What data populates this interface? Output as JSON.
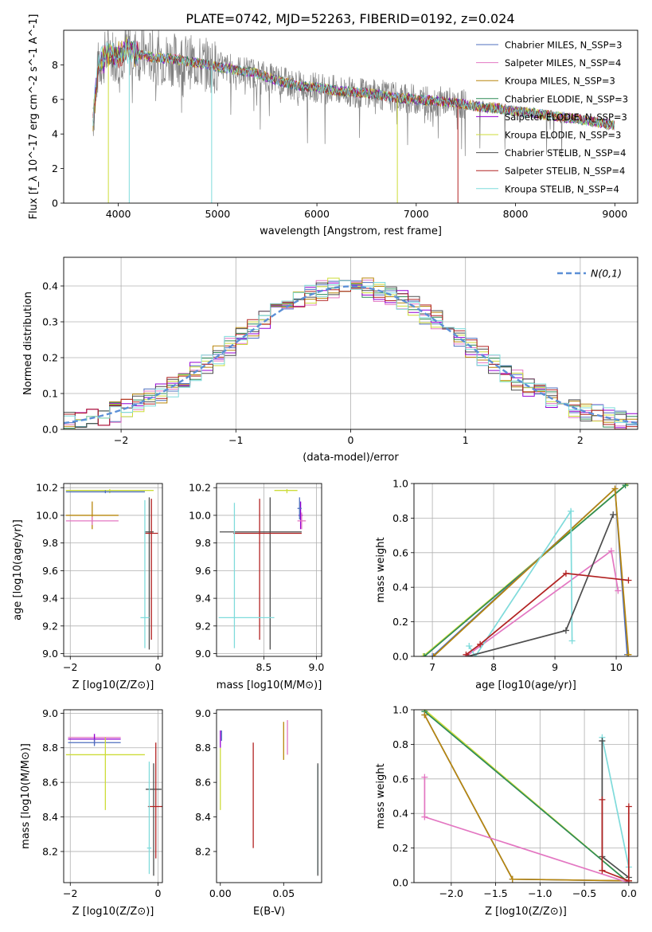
{
  "title": "PLATE=0742, MJD=52263, FIBERID=0192, z=0.024",
  "colors": {
    "chabrier_miles": "#4f6fbf",
    "salpeter_miles": "#e377c2",
    "kroupa_miles": "#b8860b",
    "chabrier_elodie": "#2e8b57",
    "salpeter_elodie": "#9400d3",
    "kroupa_elodie": "#cddc39",
    "chabrier_stelib": "#4d4d4d",
    "salpeter_stelib": "#b22222",
    "kroupa_stelib": "#7fdbdb",
    "data": "#808080",
    "gaussian": "#5b8fd6",
    "grid": "#b0b0b0"
  },
  "chart_data": [
    {
      "id": "spectrum",
      "type": "line",
      "xlabel": "wavelength [Angstrom, rest frame]",
      "ylabel": "Flux [f_λ 10^-17 erg cm^-2 s^-1 A^-1]",
      "xlim": [
        3450,
        9230
      ],
      "ylim": [
        0,
        10
      ],
      "xticks": [
        4000,
        5000,
        6000,
        7000,
        8000,
        9000
      ],
      "yticks": [
        0,
        2,
        4,
        6,
        8
      ],
      "legend_position": "top-right",
      "series": [
        {
          "name": "Chabrier MILES, N_SSP=3",
          "key": "chabrier_miles"
        },
        {
          "name": "Salpeter MILES, N_SSP=4",
          "key": "salpeter_miles"
        },
        {
          "name": "Kroupa MILES, N_SSP=3",
          "key": "kroupa_miles"
        },
        {
          "name": "Chabrier ELODIE, N_SSP=3",
          "key": "chabrier_elodie"
        },
        {
          "name": "Salpeter ELODIE, N_SSP=3",
          "key": "salpeter_elodie"
        },
        {
          "name": "Kroupa ELODIE, N_SSP=3",
          "key": "kroupa_elodie"
        },
        {
          "name": "Chabrier STELIB, N_SSP=4",
          "key": "chabrier_stelib"
        },
        {
          "name": "Salpeter STELIB, N_SSP=4",
          "key": "salpeter_stelib"
        },
        {
          "name": "Kroupa STELIB, N_SSP=4",
          "key": "kroupa_stelib"
        }
      ],
      "continuum": {
        "x": [
          3740,
          3800,
          3900,
          4000,
          4100,
          4200,
          4400,
          4600,
          4800,
          5000,
          5200,
          5400,
          5600,
          5800,
          6000,
          6200,
          6400,
          6600,
          6800,
          7000,
          7200,
          7400,
          7600,
          7800,
          8000,
          8200,
          8400,
          8600,
          8800,
          9000
        ],
        "y": [
          4.6,
          8.0,
          8.7,
          8.5,
          8.9,
          8.6,
          8.4,
          8.3,
          8.1,
          7.9,
          7.7,
          7.5,
          7.1,
          6.8,
          6.7,
          6.5,
          6.4,
          6.3,
          6.1,
          6.0,
          5.9,
          5.8,
          5.6,
          5.5,
          5.3,
          5.2,
          5.0,
          4.9,
          4.7,
          4.5
        ]
      }
    },
    {
      "id": "residuals",
      "type": "line",
      "xlabel": "(data-model)/error",
      "ylabel": "Normed distribution",
      "xlim": [
        -2.5,
        2.5
      ],
      "ylim": [
        0,
        0.48
      ],
      "xticks": [
        -2,
        -1,
        0,
        1,
        2
      ],
      "yticks": [
        0.0,
        0.1,
        0.2,
        0.3,
        0.4
      ],
      "grid": true,
      "legend_position": "top-right",
      "gaussian_label": "N(0,1)"
    },
    {
      "id": "age_vs_Z",
      "type": "scatter",
      "xlabel": "Z [log10(Z/Z⊙)]",
      "ylabel": "age [log10(age/yr)]",
      "xlim": [
        -2.15,
        0.1
      ],
      "ylim": [
        8.98,
        10.23
      ],
      "xticks": [
        -2,
        0
      ],
      "yticks": [
        9.0,
        9.2,
        9.4,
        9.6,
        9.8,
        10.0,
        10.2
      ],
      "grid": true,
      "errorbars": [
        {
          "key": "kroupa_elodie",
          "x": -1.1,
          "xerr": [
            1.0,
            1.0
          ],
          "y": 10.18,
          "yerr": [
            0.02,
            0.01
          ]
        },
        {
          "key": "chabrier_miles",
          "x": -1.2,
          "xerr": [
            0.9,
            0.9
          ],
          "y": 10.17,
          "yerr": [
            0.01,
            0.01
          ]
        },
        {
          "key": "kroupa_miles",
          "x": -1.5,
          "xerr": [
            0.6,
            0.6
          ],
          "y": 10.0,
          "yerr": [
            0.1,
            0.1
          ]
        },
        {
          "key": "salpeter_miles",
          "x": -1.5,
          "xerr": [
            0.6,
            0.6
          ],
          "y": 9.96,
          "yerr": [
            0.03,
            0.03
          ]
        },
        {
          "key": "chabrier_stelib",
          "x": -0.2,
          "xerr": [
            0.1,
            0.1
          ],
          "y": 9.88,
          "yerr": [
            0.85,
            0.25
          ]
        },
        {
          "key": "salpeter_stelib",
          "x": -0.15,
          "xerr": [
            0.15,
            0.15
          ],
          "y": 9.87,
          "yerr": [
            0.77,
            0.25
          ]
        },
        {
          "key": "kroupa_stelib",
          "x": -0.3,
          "xerr": [
            0.1,
            0.1
          ],
          "y": 9.26,
          "yerr": [
            0.22,
            0.85
          ]
        }
      ]
    },
    {
      "id": "age_vs_mass",
      "type": "scatter",
      "xlabel": "mass [log10(M/M⊙)]",
      "ylabel": "",
      "xlim": [
        8.05,
        9.05
      ],
      "ylim": [
        8.98,
        10.23
      ],
      "xticks": [
        8.5,
        9.0
      ],
      "xtick_labels": [
        "8.5",
        "9.0"
      ],
      "yticks": [
        9.0,
        9.2,
        9.4,
        9.6,
        9.8,
        10.0,
        10.2
      ],
      "grid": true,
      "errorbars": [
        {
          "key": "kroupa_elodie",
          "x": 8.72,
          "xerr": [
            0.12,
            0.1
          ],
          "y": 10.18,
          "yerr": [
            0.02,
            0.01
          ]
        },
        {
          "key": "salpeter_elodie",
          "x": 8.85,
          "xerr": [
            0.02,
            0.02
          ],
          "y": 10.0,
          "yerr": [
            0.1,
            0.1
          ]
        },
        {
          "key": "salpeter_miles",
          "x": 8.86,
          "xerr": [
            0.04,
            0.04
          ],
          "y": 9.96,
          "yerr": [
            0.06,
            0.06
          ]
        },
        {
          "key": "chabrier_miles",
          "x": 8.84,
          "xerr": [
            0.02,
            0.02
          ],
          "y": 10.05,
          "yerr": [
            0.08,
            0.08
          ]
        },
        {
          "key": "chabrier_stelib",
          "x": 8.56,
          "xerr": [
            0.48,
            0.3
          ],
          "y": 9.88,
          "yerr": [
            0.85,
            0.25
          ]
        },
        {
          "key": "salpeter_stelib",
          "x": 8.46,
          "xerr": [
            0.25,
            0.4
          ],
          "y": 9.87,
          "yerr": [
            0.77,
            0.25
          ]
        },
        {
          "key": "kroupa_stelib",
          "x": 8.22,
          "xerr": [
            0.15,
            0.38
          ],
          "y": 9.26,
          "yerr": [
            0.22,
            0.83
          ]
        }
      ]
    },
    {
      "id": "weight_vs_age",
      "type": "line",
      "xlabel": "age [log10(age/yr)]",
      "ylabel": "mass weight",
      "xlim": [
        6.7,
        10.35
      ],
      "ylim": [
        0,
        1.0
      ],
      "xticks": [
        7,
        8,
        9,
        10
      ],
      "yticks": [
        0.0,
        0.2,
        0.4,
        0.6,
        0.8,
        1.0
      ],
      "grid": true,
      "series": [
        {
          "key": "kroupa_elodie",
          "x": [
            6.85,
            10.18
          ],
          "y": [
            0.0,
            1.0
          ]
        },
        {
          "key": "chabrier_elodie",
          "x": [
            6.87,
            10.15
          ],
          "y": [
            0.0,
            0.99
          ]
        },
        {
          "key": "chabrier_miles",
          "x": [
            7.0,
            9.98,
            10.18
          ],
          "y": [
            0.0,
            0.97,
            0.01
          ]
        },
        {
          "key": "kroupa_miles",
          "x": [
            7.02,
            9.98,
            10.2
          ],
          "y": [
            0.0,
            0.97,
            0.01
          ]
        },
        {
          "key": "salpeter_miles",
          "x": [
            7.55,
            9.92,
            10.03
          ],
          "y": [
            0.0,
            0.61,
            0.38
          ]
        },
        {
          "key": "kroupa_stelib",
          "x": [
            7.6,
            7.7,
            9.26,
            9.28
          ],
          "y": [
            0.06,
            0.0,
            0.84,
            0.09
          ]
        },
        {
          "key": "chabrier_stelib",
          "x": [
            7.58,
            9.18,
            9.95
          ],
          "y": [
            0.0,
            0.15,
            0.82
          ]
        },
        {
          "key": "salpeter_stelib",
          "x": [
            7.55,
            7.78,
            9.18,
            10.2
          ],
          "y": [
            0.01,
            0.07,
            0.48,
            0.44
          ]
        }
      ]
    },
    {
      "id": "mass_vs_Z",
      "type": "scatter",
      "xlabel": "Z [log10(Z/Z⊙)]",
      "ylabel": "mass [log10(M/M⊙)]",
      "xlim": [
        -2.15,
        0.1
      ],
      "ylim": [
        8.02,
        9.02
      ],
      "xticks": [
        -2,
        0
      ],
      "yticks": [
        8.2,
        8.4,
        8.6,
        8.8,
        9.0
      ],
      "grid": true,
      "errorbars": [
        {
          "key": "salpeter_miles",
          "x": -1.45,
          "xerr": [
            0.6,
            0.6
          ],
          "y": 8.86,
          "yerr": [
            0.02,
            0.02
          ]
        },
        {
          "key": "salpeter_elodie",
          "x": -1.45,
          "xerr": [
            0.6,
            0.6
          ],
          "y": 8.85,
          "yerr": [
            0.03,
            0.03
          ]
        },
        {
          "key": "chabrier_miles",
          "x": -1.45,
          "xerr": [
            0.6,
            0.6
          ],
          "y": 8.83,
          "yerr": [
            0.02,
            0.02
          ]
        },
        {
          "key": "kroupa_elodie",
          "x": -1.2,
          "xerr": [
            0.9,
            0.9
          ],
          "y": 8.76,
          "yerr": [
            0.32,
            0.1
          ]
        },
        {
          "key": "chabrier_stelib",
          "x": -0.1,
          "xerr": [
            0.18,
            0.18
          ],
          "y": 8.56,
          "yerr": [
            0.5,
            0.15
          ]
        },
        {
          "key": "salpeter_stelib",
          "x": -0.05,
          "xerr": [
            0.18,
            0.18
          ],
          "y": 8.46,
          "yerr": [
            0.3,
            0.37
          ]
        },
        {
          "key": "kroupa_stelib",
          "x": -0.2,
          "xerr": [
            0.05,
            0.05
          ],
          "y": 8.22,
          "yerr": [
            0.15,
            0.5
          ]
        }
      ]
    },
    {
      "id": "mass_vs_ebv",
      "type": "scatter",
      "xlabel": "E(B-V)",
      "ylabel": "",
      "xlim": [
        -0.003,
        0.08
      ],
      "ylim": [
        8.02,
        9.02
      ],
      "xticks": [
        0.0,
        0.05
      ],
      "xtick_labels": [
        "0.00",
        "0.05"
      ],
      "yticks": [
        8.2,
        8.4,
        8.6,
        8.8,
        9.0
      ],
      "grid": false,
      "errorbars": [
        {
          "key": "chabrier_miles",
          "x": 0.001,
          "y": 8.86,
          "yerr": [
            0.02,
            0.04
          ]
        },
        {
          "key": "salpeter_elodie",
          "x": 0.0,
          "y": 8.85,
          "yerr": [
            0.05,
            0.05
          ]
        },
        {
          "key": "kroupa_elodie",
          "x": 0.0,
          "y": 8.76,
          "yerr": [
            0.32,
            0.04
          ]
        },
        {
          "key": "salpeter_stelib",
          "x": 0.026,
          "y": 8.46,
          "yerr": [
            0.24,
            0.37
          ]
        },
        {
          "key": "kroupa_miles",
          "x": 0.05,
          "y": 8.85,
          "yerr": [
            0.12,
            0.1
          ]
        },
        {
          "key": "salpeter_miles",
          "x": 0.053,
          "y": 8.86,
          "yerr": [
            0.1,
            0.1
          ]
        },
        {
          "key": "kroupa_stelib",
          "x": 0.077,
          "y": 8.22,
          "yerr": [
            0.15,
            0.48
          ]
        },
        {
          "key": "chabrier_stelib",
          "x": 0.077,
          "y": 8.56,
          "yerr": [
            0.5,
            0.15
          ]
        }
      ]
    },
    {
      "id": "weight_vs_Z",
      "type": "line",
      "xlabel": "Z [log10(Z/Z⊙)]",
      "ylabel": "mass weight",
      "xlim": [
        -2.42,
        0.1
      ],
      "ylim": [
        0,
        1.0
      ],
      "xticks": [
        -2.0,
        -1.5,
        -1.0,
        -0.5,
        0.0
      ],
      "xtick_labels": [
        "−2.0",
        "−1.5",
        "−1.0",
        "−0.5",
        "0.0"
      ],
      "yticks": [
        0.0,
        0.2,
        0.4,
        0.6,
        0.8,
        1.0
      ],
      "grid": true,
      "series": [
        {
          "key": "kroupa_elodie",
          "x": [
            -2.3,
            0.0
          ],
          "y": [
            1.0,
            0.0
          ]
        },
        {
          "key": "chabrier_elodie",
          "x": [
            -2.3,
            0.0
          ],
          "y": [
            0.99,
            0.0
          ]
        },
        {
          "key": "chabrier_miles",
          "x": [
            -2.3,
            -1.31,
            0.0
          ],
          "y": [
            0.97,
            0.02,
            0.01
          ]
        },
        {
          "key": "kroupa_miles",
          "x": [
            -2.3,
            -1.31,
            0.0
          ],
          "y": [
            0.97,
            0.02,
            0.01
          ]
        },
        {
          "key": "salpeter_miles",
          "x": [
            -2.3,
            -2.3,
            0.0
          ],
          "y": [
            0.61,
            0.38,
            0.0
          ]
        },
        {
          "key": "kroupa_stelib",
          "x": [
            -0.3,
            0.0,
            0.0
          ],
          "y": [
            0.84,
            0.09,
            0.0
          ]
        },
        {
          "key": "chabrier_stelib",
          "x": [
            -0.3,
            -0.3,
            0.0
          ],
          "y": [
            0.82,
            0.15,
            0.03
          ]
        },
        {
          "key": "salpeter_stelib",
          "x": [
            -0.3,
            -0.3,
            0.0,
            0.0
          ],
          "y": [
            0.48,
            0.07,
            0.01,
            0.44
          ]
        }
      ]
    }
  ]
}
